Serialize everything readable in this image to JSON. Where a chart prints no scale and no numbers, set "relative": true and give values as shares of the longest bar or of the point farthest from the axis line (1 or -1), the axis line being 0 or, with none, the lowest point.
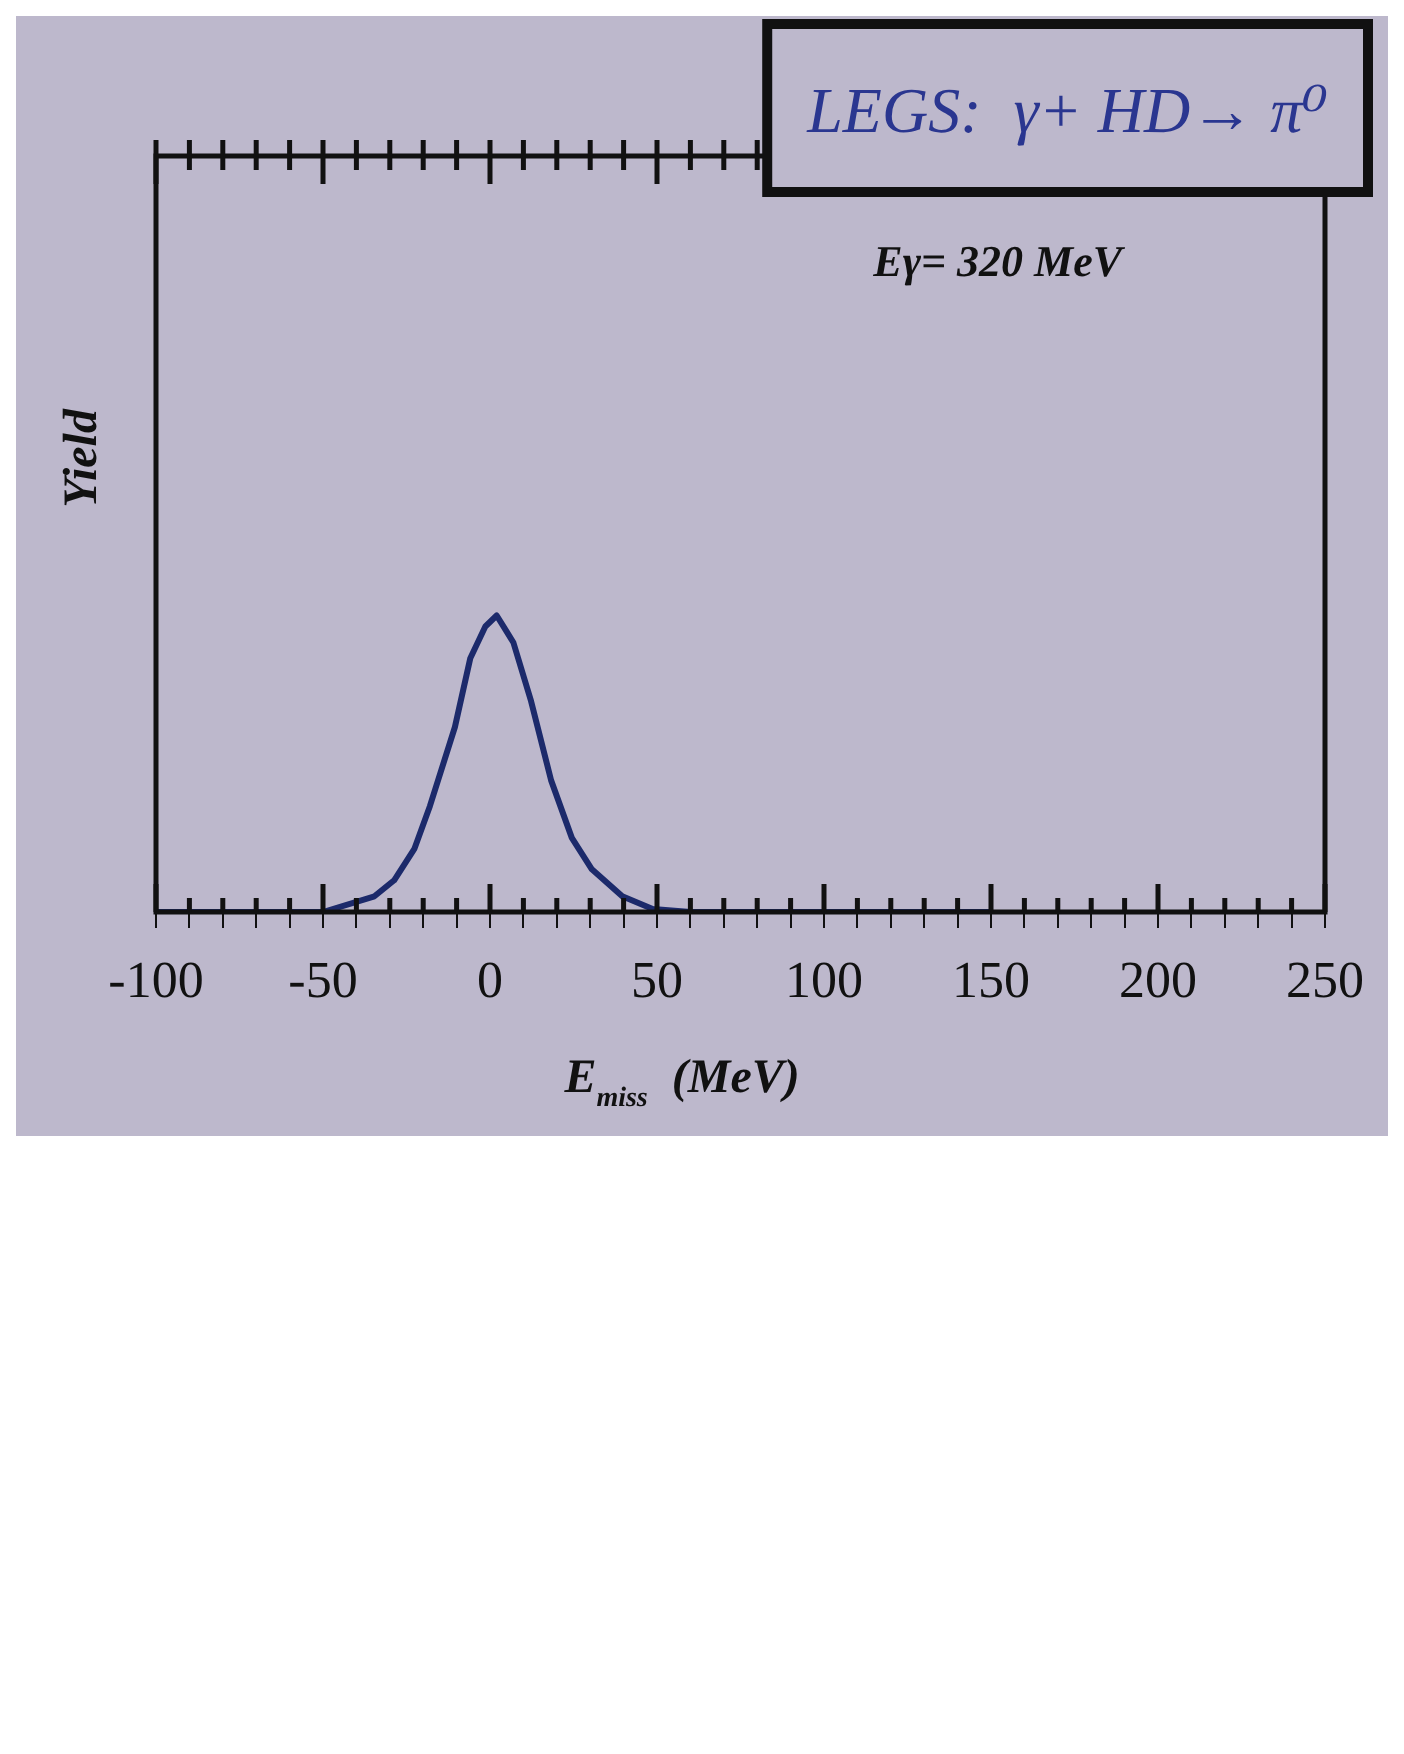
{
  "chart_data": {
    "type": "line",
    "title": "LEGS:  γ+ HD→ π⁰",
    "xlabel": "E$_{miss}$  (MeV)",
    "ylabel": "Yield",
    "relative": true,
    "annotations": [
      "Eγ= 320 MeV"
    ],
    "xlim": [
      -100,
      250
    ],
    "xticks": [
      -100,
      {
        "value": -90,
        "label": null
      },
      {
        "value": -80,
        "label": null
      },
      {
        "value": -70,
        "label": null
      },
      {
        "value": -60,
        "label": null
      },
      -50,
      {
        "value": -40,
        "label": null
      },
      {
        "value": -30,
        "label": null
      },
      {
        "value": -20,
        "label": null
      },
      {
        "value": -10,
        "label": null
      },
      0,
      {
        "value": 10,
        "label": null
      },
      {
        "value": 20,
        "label": null
      },
      {
        "value": 30,
        "label": null
      },
      {
        "value": 40,
        "label": null
      },
      50,
      {
        "value": 60,
        "label": null
      },
      {
        "value": 70,
        "label": null
      },
      {
        "value": 80,
        "label": null
      },
      {
        "value": 90,
        "label": null
      },
      100,
      {
        "value": 110,
        "label": null
      },
      {
        "value": 120,
        "label": null
      },
      {
        "value": 130,
        "label": null
      },
      {
        "value": 140,
        "label": null
      },
      150,
      {
        "value": 160,
        "label": null
      },
      {
        "value": 170,
        "label": null
      },
      {
        "value": 180,
        "label": null
      },
      {
        "value": 190,
        "label": null
      },
      200,
      {
        "value": 210,
        "label": null
      },
      {
        "value": 220,
        "label": null
      },
      {
        "value": 230,
        "label": null
      },
      {
        "value": 240,
        "label": null
      },
      250
    ],
    "x": [
      -100,
      -50,
      -34.6,
      -28.7,
      -22.6,
      -18,
      -10.5,
      -5.9,
      -1.4,
      2,
      7,
      12.3,
      18.3,
      24.5,
      30.5,
      39.6,
      48.7,
      60,
      150
    ],
    "series": [
      {
        "color": "#1c2a6b",
        "values": [
          0,
          0,
          0.053,
          0.107,
          0.214,
          0.357,
          0.624,
          0.856,
          0.963,
          1,
          0.909,
          0.711,
          0.444,
          0.25,
          0.144,
          0.053,
          0.01,
          0,
          0
        ]
      }
    ],
    "grid": false,
    "legend": false,
    "marker": "none",
    "line_style": "solid"
  }
}
